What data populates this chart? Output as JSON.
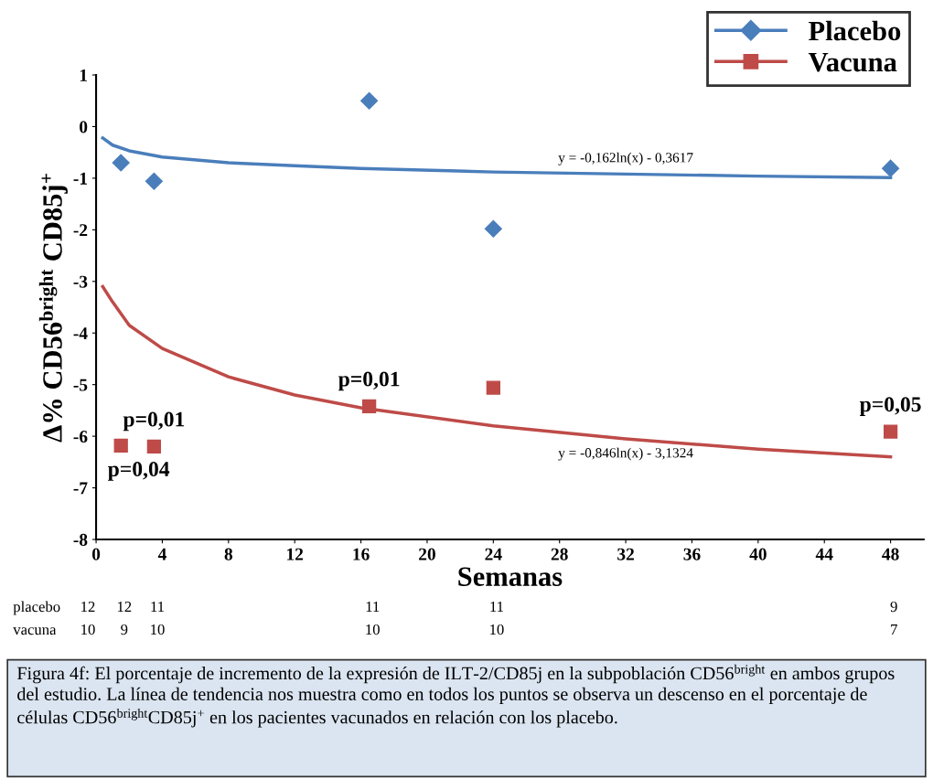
{
  "chart_data": {
    "type": "scatter",
    "xlabel": "Semanas",
    "ylabel": "Δ% CD56$^{bright}$ CD85j$^{+}$",
    "xlim": [
      0,
      50
    ],
    "xticks": [
      0,
      4,
      8,
      12,
      16,
      20,
      24,
      28,
      32,
      36,
      40,
      44,
      48
    ],
    "ylim": [
      -8,
      1
    ],
    "yticks": [
      -8,
      -7,
      -6,
      -5,
      -4,
      -3,
      -2,
      -1,
      0,
      1
    ],
    "grid": false,
    "legend": "top right",
    "series": [
      {
        "name": "Placebo",
        "marker": "diamond",
        "color": "#4a7ebb",
        "x": [
          1.5,
          3.5,
          16.5,
          24,
          48
        ],
        "values": [
          -0.7,
          -1.06,
          0.5,
          -1.98,
          -0.81
        ]
      },
      {
        "name": "Vacuna",
        "marker": "square",
        "color": "#be4b48",
        "x": [
          1.5,
          3.5,
          16.5,
          24,
          48
        ],
        "values": [
          -6.18,
          -6.2,
          -5.42,
          -5.06,
          -5.91
        ]
      },
      {
        "type": "line",
        "marker": "none",
        "color": "#4a7ebb",
        "x": [
          0.4,
          1,
          2,
          4,
          8,
          12,
          16,
          24,
          32,
          40,
          48
        ],
        "values": [
          -0.22,
          -0.36,
          -0.47,
          -0.59,
          -0.7,
          -0.76,
          -0.81,
          -0.88,
          -0.92,
          -0.96,
          -0.99
        ]
      },
      {
        "type": "line",
        "marker": "none",
        "color": "#be4b48",
        "x": [
          0.4,
          1,
          2,
          4,
          8,
          12,
          16,
          24,
          32,
          40,
          48
        ],
        "values": [
          -3.1,
          -3.4,
          -3.85,
          -4.3,
          -4.85,
          -5.2,
          -5.45,
          -5.8,
          -6.05,
          -6.25,
          -6.4
        ]
      }
    ],
    "annotations": [
      {
        "text": "p=0,04",
        "x": 1.5,
        "y": -6.18
      },
      {
        "text": "p=0,01",
        "x": 3.5,
        "y": -6.2
      },
      {
        "text": "p=0,01",
        "x": 16.5,
        "y": -5.42
      },
      {
        "text": "p=0,05",
        "x": 48,
        "y": -5.91
      },
      "y = -0,162ln(x) - 0,3617",
      "y = -0,846ln(x) - 3,1324",
      "placebo",
      "12",
      "12",
      "11",
      "11",
      "11",
      "9",
      "vacuna",
      "10",
      "9",
      "10",
      "10",
      "10",
      "7",
      "Figura 4f: El porcentaje de incremento de la expresión de ILT-2/CD85j en la subpoblación CD56$^{bright}$ en ambos grupos del estudio. La línea de tendencia nos muestra como en todos los puntos se observa un descenso en el porcentaje de células CD56$^{bright}$CD85j$^{+}$ en los pacientes vacunados en relación con los placebo."
    ]
  }
}
